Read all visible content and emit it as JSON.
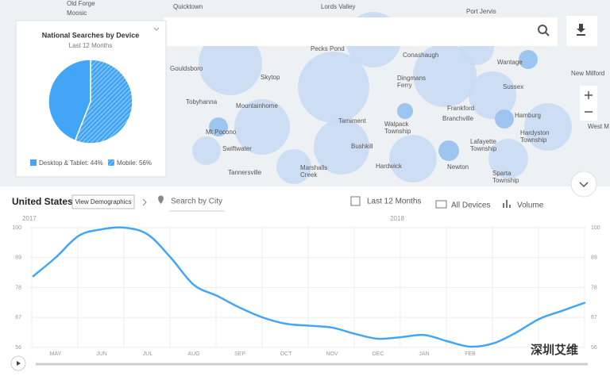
{
  "map": {
    "places": [
      "Old Forge",
      "Moosic",
      "Quicktown",
      "Lords Valley",
      "Port Jervis",
      "Pecks Pond",
      "Conashaugh",
      "Wantage",
      "New Milford",
      "Gouldsboro",
      "Skytop",
      "Dingmans Ferry",
      "Sussex",
      "Tobyhanna",
      "Mountainhome",
      "Frankford",
      "Branchville",
      "Hamburg",
      "Mt Pocono",
      "Tamiment",
      "Walpack Township",
      "Hardyston Township",
      "Swiftwater",
      "Bushkill",
      "Lafayette Township",
      "West M",
      "Tannersville",
      "Marshalls Creek",
      "Hardwick",
      "Newton",
      "Sparta Township"
    ]
  },
  "pie_card": {
    "chart_data": {
      "type": "pie",
      "title": "National Searches by Device",
      "subtitle": "Last 12 Months",
      "categories": [
        "Desktop & Tablet: 44%",
        "Mobile: 56%"
      ],
      "values": [
        44,
        56
      ],
      "colors": [
        "#42a5f5",
        "#42a5f5"
      ],
      "hatched": [
        false,
        true
      ]
    }
  },
  "toolbar": {
    "country": "United States",
    "demographics_button": "View Demographics",
    "city_search": "Search by City",
    "period": "Last 12 Months",
    "devices": "All Devices",
    "metric": "Volume"
  },
  "chart_data": {
    "type": "line",
    "years": [
      "2017",
      "2018"
    ],
    "categories": [
      null,
      "MAY",
      null,
      "JUN",
      null,
      "JUL",
      null,
      "AUG",
      null,
      "SEP",
      null,
      "OCT",
      null,
      "NOV",
      null,
      "DEC",
      null,
      "JAN",
      null,
      "FEB",
      null,
      null,
      null,
      null,
      null
    ],
    "series": [
      {
        "name": "Volume",
        "color": "#42a5f5",
        "values": [
          82,
          89,
          97,
          99.4,
          100,
          97.5,
          89,
          79,
          75,
          70.6,
          67,
          64.7,
          64,
          63.3,
          61,
          59.2,
          59.8,
          60.6,
          58.3,
          56.3,
          57.5,
          61.5,
          66.5,
          69.5,
          72.5
        ]
      }
    ],
    "ylim": [
      56,
      100
    ],
    "yticks": [
      56,
      67,
      78,
      89,
      100
    ],
    "grid": true
  },
  "watermark": "深圳艾维"
}
